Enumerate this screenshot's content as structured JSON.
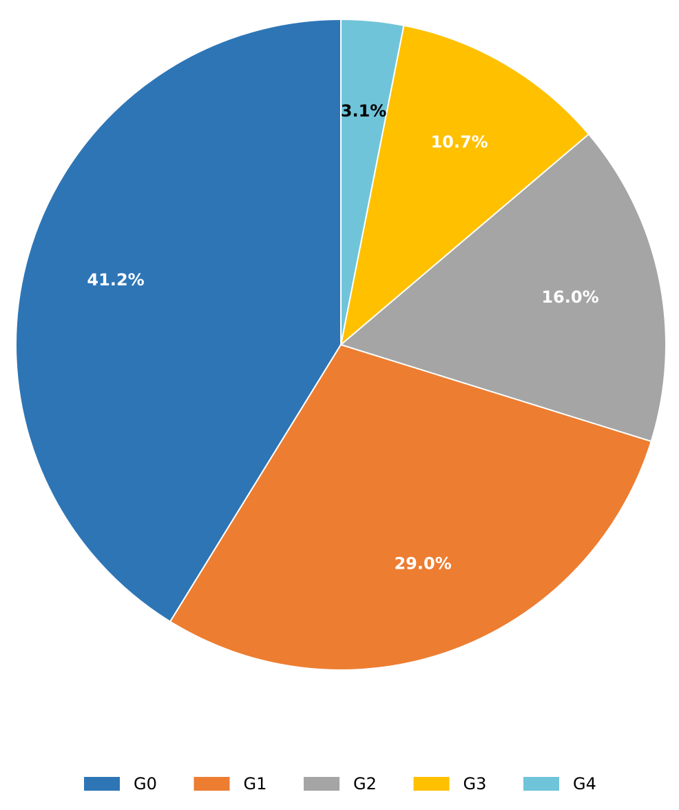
{
  "chart_data": {
    "type": "pie",
    "categories": [
      "G0",
      "G1",
      "G2",
      "G3",
      "G4"
    ],
    "values": [
      41.2,
      29.0,
      16.0,
      10.7,
      3.1
    ],
    "value_labels": [
      "41.2%",
      "29.0%",
      "16.0%",
      "10.7%",
      "3.1%"
    ],
    "colors": [
      "#2e75b6",
      "#ed7d31",
      "#a5a5a5",
      "#ffc000",
      "#70c4d9"
    ],
    "value_label_colors": [
      "#ffffff",
      "#ffffff",
      "#ffffff",
      "#ffffff",
      "#000000"
    ],
    "start_angle": 90,
    "direction": "counterclockwise",
    "legend": "bottom"
  }
}
